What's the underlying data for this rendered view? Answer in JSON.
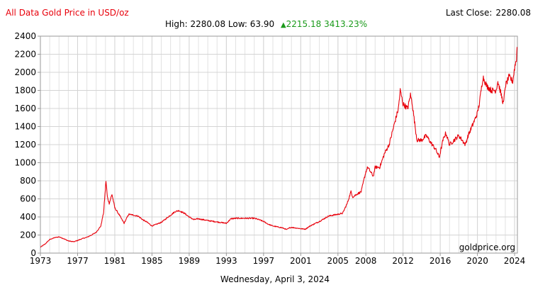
{
  "header": {
    "title": "All Data Gold Price in USD/oz",
    "last_close_label": "Last Close:",
    "last_close_value": "2280.08",
    "high_label": "High:",
    "high_value": "2280.08",
    "low_label": "Low:",
    "low_value": "63.90",
    "change_value": "2215.18",
    "change_pct": "3413.23%"
  },
  "watermark": "goldprice.org",
  "footer_date": "Wednesday, April 3, 2024",
  "colors": {
    "line": "#e8000b",
    "up": "#1a9a1a",
    "grid": "#d4d4d4",
    "title": "#e8000b"
  },
  "chart_data": {
    "type": "line",
    "title": "All Data Gold Price in USD/oz",
    "xlabel": "",
    "ylabel": "",
    "xlim": [
      1973,
      2024.3
    ],
    "ylim": [
      0,
      2400
    ],
    "x_ticks": [
      "1973",
      "1977",
      "1981",
      "1985",
      "1989",
      "1993",
      "1997",
      "2001",
      "2005",
      "2008",
      "2012",
      "2016",
      "2020",
      "2024"
    ],
    "y_ticks": [
      0,
      200,
      400,
      600,
      800,
      1000,
      1200,
      1400,
      1600,
      1800,
      2000,
      2200,
      2400
    ],
    "grid": true,
    "series": [
      {
        "name": "",
        "x": [
          1973.0,
          1973.5,
          1974.0,
          1974.5,
          1975.0,
          1975.5,
          1976.0,
          1976.6,
          1977.0,
          1977.5,
          1978.0,
          1978.5,
          1979.0,
          1979.5,
          1979.8,
          1980.05,
          1980.2,
          1980.4,
          1980.7,
          1981.0,
          1981.5,
          1982.0,
          1982.5,
          1983.0,
          1983.5,
          1984.0,
          1984.5,
          1985.0,
          1985.5,
          1986.0,
          1986.5,
          1987.0,
          1987.5,
          1987.9,
          1988.5,
          1989.0,
          1989.5,
          1990.0,
          1991.0,
          1992.0,
          1993.0,
          1993.5,
          1994.0,
          1995.0,
          1996.0,
          1996.5,
          1997.0,
          1997.5,
          1998.0,
          1999.0,
          1999.5,
          1999.8,
          2000.0,
          2001.0,
          2001.5,
          2002.0,
          2003.0,
          2004.0,
          2005.0,
          2005.5,
          2006.0,
          2006.4,
          2006.6,
          2007.0,
          2007.5,
          2008.0,
          2008.2,
          2008.8,
          2009.0,
          2009.5,
          2010.0,
          2010.5,
          2011.0,
          2011.5,
          2011.7,
          2012.0,
          2012.5,
          2012.8,
          2013.0,
          2013.3,
          2013.5,
          2014.0,
          2014.5,
          2015.0,
          2015.5,
          2015.9,
          2016.3,
          2016.6,
          2017.0,
          2017.5,
          2018.0,
          2018.7,
          2019.0,
          2019.5,
          2020.0,
          2020.2,
          2020.6,
          2021.0,
          2021.5,
          2022.0,
          2022.2,
          2022.8,
          2023.0,
          2023.4,
          2023.8,
          2024.0,
          2024.2,
          2024.26
        ],
        "y": [
          65,
          100,
          150,
          170,
          180,
          160,
          135,
          125,
          140,
          160,
          175,
          200,
          230,
          300,
          450,
          800,
          620,
          550,
          650,
          500,
          420,
          330,
          430,
          420,
          410,
          370,
          340,
          300,
          320,
          340,
          380,
          420,
          460,
          470,
          440,
          400,
          370,
          380,
          360,
          345,
          330,
          380,
          385,
          385,
          385,
          370,
          350,
          320,
          300,
          280,
          260,
          280,
          285,
          270,
          265,
          300,
          350,
          410,
          430,
          440,
          550,
          680,
          620,
          650,
          680,
          900,
          950,
          850,
          950,
          950,
          1100,
          1200,
          1400,
          1600,
          1800,
          1650,
          1600,
          1750,
          1650,
          1400,
          1250,
          1250,
          1300,
          1220,
          1150,
          1060,
          1250,
          1330,
          1200,
          1250,
          1300,
          1200,
          1300,
          1420,
          1550,
          1650,
          1950,
          1850,
          1800,
          1800,
          1900,
          1650,
          1850,
          1950,
          1900,
          2050,
          2150,
          2280
        ]
      }
    ]
  }
}
